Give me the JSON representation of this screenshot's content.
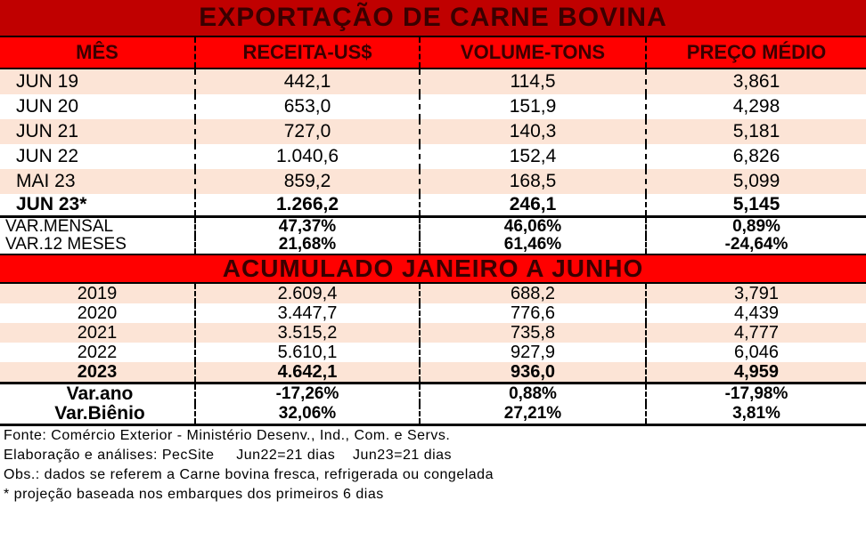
{
  "title": "EXPORTAÇÃO DE CARNE BOVINA",
  "headers": [
    "MÊS",
    "RECEITA-US$",
    "VOLUME-TONS",
    "PREÇO MÉDIO"
  ],
  "monthly_rows": [
    {
      "mes": "JUN 19",
      "receita": "442,1",
      "volume": "114,5",
      "preco": "3,861"
    },
    {
      "mes": "JUN 20",
      "receita": "653,0",
      "volume": "151,9",
      "preco": "4,298"
    },
    {
      "mes": "JUN 21",
      "receita": "727,0",
      "volume": "140,3",
      "preco": "5,181"
    },
    {
      "mes": "JUN 22",
      "receita": "1.040,6",
      "volume": "152,4",
      "preco": "6,826"
    },
    {
      "mes": "MAI 23",
      "receita": "859,2",
      "volume": "168,5",
      "preco": "5,099"
    },
    {
      "mes": "JUN 23*",
      "receita": "1.266,2",
      "volume": "246,1",
      "preco": "5,145"
    }
  ],
  "monthly_vars": [
    {
      "label": "VAR.MENSAL",
      "receita": "47,37%",
      "volume": "46,06%",
      "preco": "0,89%"
    },
    {
      "label": "VAR.12 MESES",
      "receita": "21,68%",
      "volume": "61,46%",
      "preco": "-24,64%"
    }
  ],
  "subtitle": "ACUMULADO JANEIRO A JUNHO",
  "yearly_rows": [
    {
      "ano": "2019",
      "receita": "2.609,4",
      "volume": "688,2",
      "preco": "3,791"
    },
    {
      "ano": "2020",
      "receita": "3.447,7",
      "volume": "776,6",
      "preco": "4,439"
    },
    {
      "ano": "2021",
      "receita": "3.515,2",
      "volume": "735,8",
      "preco": "4,777"
    },
    {
      "ano": "2022",
      "receita": "5.610,1",
      "volume": "927,9",
      "preco": "6,046"
    },
    {
      "ano": "2023",
      "receita": "4.642,1",
      "volume": "936,0",
      "preco": "4,959"
    }
  ],
  "yearly_vars": [
    {
      "label": "Var.ano",
      "receita": "-17,26%",
      "volume": "0,88%",
      "preco": "-17,98%"
    },
    {
      "label": "Var.Biênio",
      "receita": "32,06%",
      "volume": "27,21%",
      "preco": "3,81%"
    }
  ],
  "notes": [
    "Fonte: Comércio Exterior - Ministério Desenv., Ind., Com. e Servs.",
    "Elaboração e análises: PecSite     Jun22=21 dias    Jun23=21 dias",
    "Obs.: dados se referem a Carne bovina fresca, refrigerada ou congelada",
    "* projeção baseada nos embarques dos primeiros 6 dias"
  ],
  "colors": {
    "title_bg": "#c00000",
    "header_bg": "#ff0000",
    "shade": "#fce4d6",
    "header_text": "#3a0000"
  }
}
